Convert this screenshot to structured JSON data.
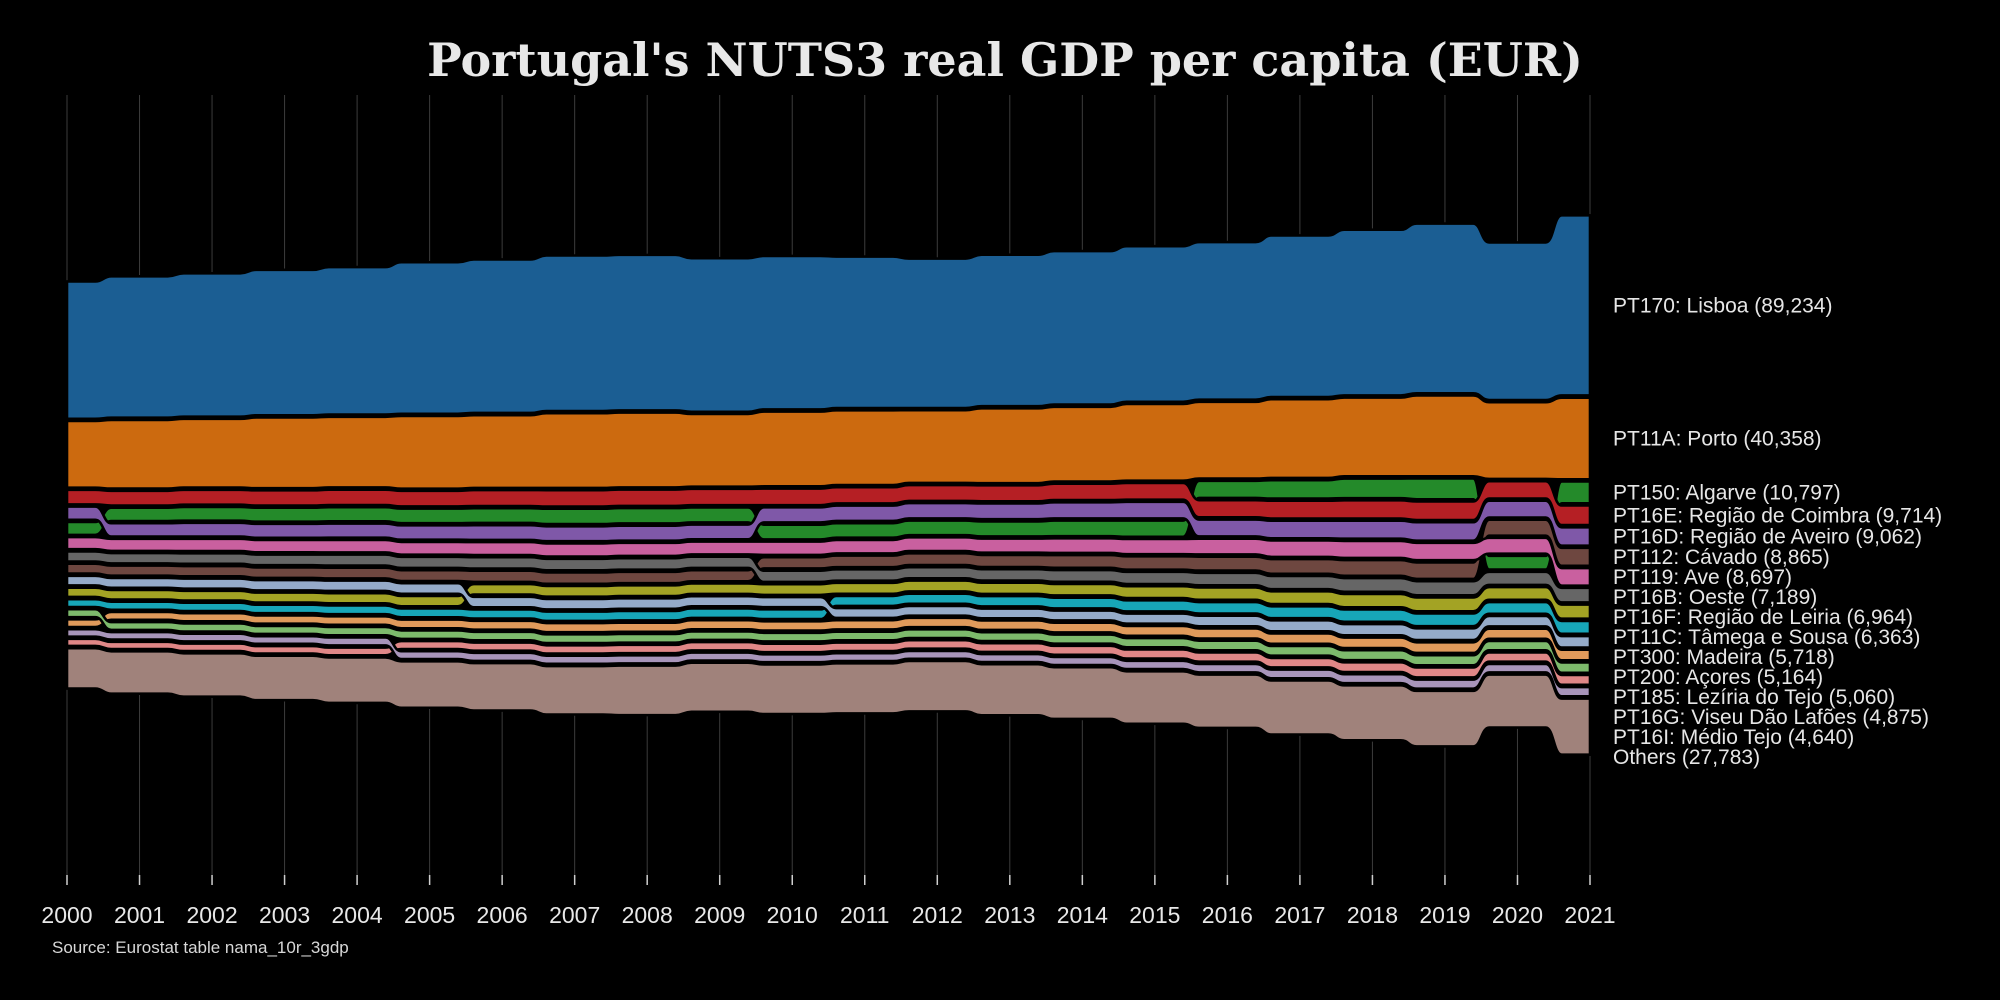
{
  "source_note": "Source: Eurostat table nama_10r_3gdp",
  "chart_data": {
    "type": "area",
    "subtype": "ranked stream (bump area)",
    "title": "Portugal's NUTS3 real GDP per capita (EUR)",
    "x": [
      2000,
      2001,
      2002,
      2003,
      2004,
      2005,
      2006,
      2007,
      2008,
      2009,
      2010,
      2011,
      2012,
      2013,
      2014,
      2015,
      2016,
      2017,
      2018,
      2019,
      2020,
      2021
    ],
    "grid": true,
    "legend": "labels at right end of each band",
    "series": [
      {
        "code": "PT170",
        "label": "PT170: Lisboa (89,234)",
        "color": "#1b5e93",
        "values": [
          68,
          70,
          71,
          72,
          73,
          75,
          76,
          77,
          77,
          76,
          76,
          75,
          74,
          75,
          76,
          77,
          78,
          80,
          82,
          84,
          78,
          89.2
        ]
      },
      {
        "code": "PT11A",
        "label": "PT11A: Porto (40,358)",
        "color": "#cc6a0f",
        "values": [
          33,
          34,
          34,
          35,
          35,
          36,
          36,
          37,
          37,
          36,
          37,
          37,
          36,
          37,
          37,
          38,
          38,
          39,
          39,
          40,
          38,
          40.4
        ]
      },
      {
        "code": "PT150",
        "label": "PT150: Algarve (10,797)",
        "color": "#248a2a",
        "values": [
          6.4,
          6.6,
          6.8,
          6.9,
          7.0,
          7.2,
          7.3,
          7.6,
          7.6,
          7.4,
          7.3,
          7.2,
          7.2,
          7.4,
          7.7,
          8.0,
          8.5,
          9.1,
          9.7,
          10.3,
          6.8,
          10.8
        ]
      },
      {
        "code": "PT16E",
        "label": "PT16E: Região de Coimbra (9,714)",
        "color": "#b51f24",
        "values": [
          7.2,
          7.3,
          7.4,
          7.5,
          7.6,
          7.7,
          7.9,
          8.1,
          8.1,
          8.1,
          8.2,
          8.0,
          7.8,
          7.9,
          8.1,
          8.3,
          8.5,
          8.8,
          9.0,
          9.2,
          8.6,
          9.7
        ]
      },
      {
        "code": "PT16D",
        "label": "PT16D: Região de Aveiro (9,062)",
        "color": "#7f58a8",
        "values": [
          6.5,
          6.6,
          6.8,
          6.9,
          7.0,
          7.1,
          7.3,
          7.4,
          7.4,
          7.3,
          7.5,
          7.6,
          7.6,
          7.8,
          8.0,
          8.2,
          8.4,
          8.7,
          8.9,
          9.1,
          8.3,
          9.1
        ]
      },
      {
        "code": "PT112",
        "label": "PT112: Cávado (8,865)",
        "color": "#6e4740",
        "values": [
          4.9,
          5.0,
          5.1,
          5.2,
          5.3,
          5.4,
          5.5,
          5.6,
          5.6,
          5.5,
          5.6,
          5.7,
          5.8,
          6.0,
          6.3,
          6.6,
          6.9,
          7.3,
          7.8,
          8.2,
          7.9,
          8.9
        ]
      },
      {
        "code": "PT119",
        "label": "PT119: Ave (8,697)",
        "color": "#c9609f",
        "values": [
          6.0,
          6.0,
          6.1,
          6.1,
          6.2,
          6.3,
          6.4,
          6.5,
          6.5,
          6.4,
          6.6,
          6.7,
          6.8,
          7.0,
          7.2,
          7.5,
          7.8,
          8.1,
          8.4,
          8.6,
          7.8,
          8.7
        ]
      },
      {
        "code": "PT16B",
        "label": "PT16B: Oeste (7,189)",
        "color": "#666666",
        "values": [
          5.0,
          5.1,
          5.2,
          5.3,
          5.4,
          5.5,
          5.6,
          5.7,
          5.7,
          5.6,
          5.6,
          5.6,
          5.5,
          5.6,
          5.8,
          6.0,
          6.2,
          6.5,
          6.8,
          7.0,
          6.5,
          7.2
        ]
      },
      {
        "code": "PT16F",
        "label": "PT16F: Região de Leiria (6,964)",
        "color": "#a3a324",
        "values": [
          4.6,
          4.7,
          4.8,
          4.9,
          5.0,
          5.1,
          5.2,
          5.3,
          5.3,
          5.2,
          5.3,
          5.4,
          5.4,
          5.5,
          5.7,
          5.9,
          6.1,
          6.3,
          6.6,
          6.8,
          6.3,
          7.0
        ]
      },
      {
        "code": "PT11C",
        "label": "PT11C: Tâmega e Sousa (6,363)",
        "color": "#17a6b8",
        "values": [
          3.9,
          4.0,
          4.1,
          4.2,
          4.3,
          4.4,
          4.5,
          4.6,
          4.7,
          4.7,
          4.8,
          4.9,
          5.0,
          5.1,
          5.3,
          5.5,
          5.7,
          5.9,
          6.1,
          6.3,
          5.8,
          6.4
        ]
      },
      {
        "code": "PT300",
        "label": "PT300: Madeira (5,718)",
        "color": "#95abc9",
        "values": [
          4.8,
          4.9,
          5.0,
          5.1,
          5.1,
          5.2,
          5.2,
          5.2,
          5.2,
          5.0,
          5.0,
          4.9,
          4.8,
          4.8,
          4.9,
          5.0,
          5.2,
          5.4,
          5.6,
          5.8,
          5.2,
          5.7
        ]
      },
      {
        "code": "PT200",
        "label": "PT200: Açores (5,164)",
        "color": "#e09a5b",
        "values": [
          3.8,
          3.9,
          4.0,
          4.1,
          4.2,
          4.3,
          4.4,
          4.5,
          4.5,
          4.5,
          4.6,
          4.6,
          4.6,
          4.7,
          4.8,
          4.9,
          5.0,
          5.1,
          5.2,
          5.3,
          5.0,
          5.2
        ]
      },
      {
        "code": "PT185",
        "label": "PT185: Lezíria do Tejo (5,060)",
        "color": "#7dba6c",
        "values": [
          3.9,
          3.9,
          4.0,
          4.0,
          4.1,
          4.2,
          4.2,
          4.3,
          4.3,
          4.2,
          4.3,
          4.3,
          4.3,
          4.4,
          4.5,
          4.6,
          4.7,
          4.8,
          4.9,
          5.0,
          4.6,
          5.1
        ]
      },
      {
        "code": "PT16G",
        "label": "PT16G: Viseu Dão Lafões (4,875)",
        "color": "#e08787",
        "values": [
          3.5,
          3.6,
          3.7,
          3.7,
          3.8,
          3.9,
          4.0,
          4.1,
          4.1,
          4.1,
          4.2,
          4.2,
          4.2,
          4.3,
          4.4,
          4.5,
          4.6,
          4.7,
          4.8,
          4.9,
          4.6,
          4.9
        ]
      },
      {
        "code": "PT16I",
        "label": "PT16I: Médio Tejo (4,640)",
        "color": "#a895ba",
        "values": [
          3.7,
          3.7,
          3.8,
          3.8,
          3.9,
          3.9,
          4.0,
          4.0,
          4.0,
          3.9,
          3.9,
          3.9,
          3.9,
          3.9,
          4.0,
          4.1,
          4.2,
          4.3,
          4.4,
          4.5,
          4.2,
          4.6
        ]
      },
      {
        "code": "Others",
        "label": "Others (27,783)",
        "color": "#a0827b",
        "values": [
          20,
          21,
          21.5,
          22,
          22.5,
          23,
          23.5,
          24,
          24.5,
          24.3,
          24.6,
          24.8,
          25,
          25.3,
          25.6,
          26,
          26.4,
          26.8,
          27.2,
          27.5,
          26.2,
          27.8
        ]
      }
    ]
  }
}
